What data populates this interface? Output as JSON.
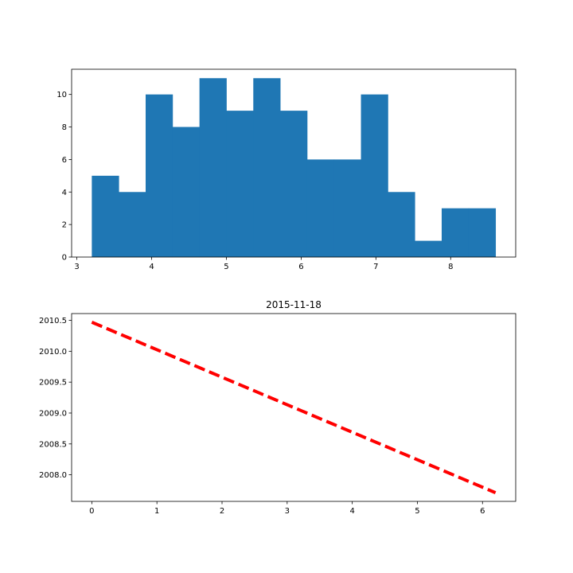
{
  "chart_data": [
    {
      "type": "bar",
      "title": "",
      "xlabel": "",
      "ylabel": "",
      "bin_edges": [
        3.2,
        3.56,
        3.92,
        4.28,
        4.64,
        5.0,
        5.36,
        5.72,
        6.08,
        6.44,
        6.8,
        7.16,
        7.52,
        7.88,
        8.24,
        8.6
      ],
      "values": [
        5,
        4,
        10,
        8,
        11,
        9,
        11,
        9,
        6,
        6,
        10,
        4,
        1,
        3,
        3
      ],
      "xlim": [
        2.93,
        8.87
      ],
      "ylim": [
        0,
        11.55
      ],
      "xticks": [
        3,
        4,
        5,
        6,
        7,
        8
      ],
      "xtick_labels": [
        "3",
        "4",
        "5",
        "6",
        "7",
        "8"
      ],
      "yticks": [
        0,
        2,
        4,
        6,
        8,
        10
      ],
      "ytick_labels": [
        "0",
        "2",
        "4",
        "6",
        "8",
        "10"
      ],
      "color": "#1f77b4",
      "grid": false,
      "legend": "none"
    },
    {
      "type": "line",
      "title": "2015-11-18",
      "xlabel": "",
      "ylabel": "",
      "x": [
        0,
        6.2
      ],
      "y": [
        2010.47,
        2007.71
      ],
      "xlim": [
        -0.31,
        6.51
      ],
      "ylim": [
        2007.57,
        2010.61
      ],
      "xticks": [
        0,
        1,
        2,
        3,
        4,
        5,
        6
      ],
      "xtick_labels": [
        "0",
        "1",
        "2",
        "3",
        "4",
        "5",
        "6"
      ],
      "yticks": [
        2008.0,
        2008.5,
        2009.0,
        2009.5,
        2010.0,
        2010.5
      ],
      "ytick_labels": [
        "2008.0",
        "2008.5",
        "2009.0",
        "2009.5",
        "2010.0",
        "2010.5"
      ],
      "color": "#ff0000",
      "line_style": "dashed",
      "grid": false,
      "legend": "none"
    }
  ]
}
